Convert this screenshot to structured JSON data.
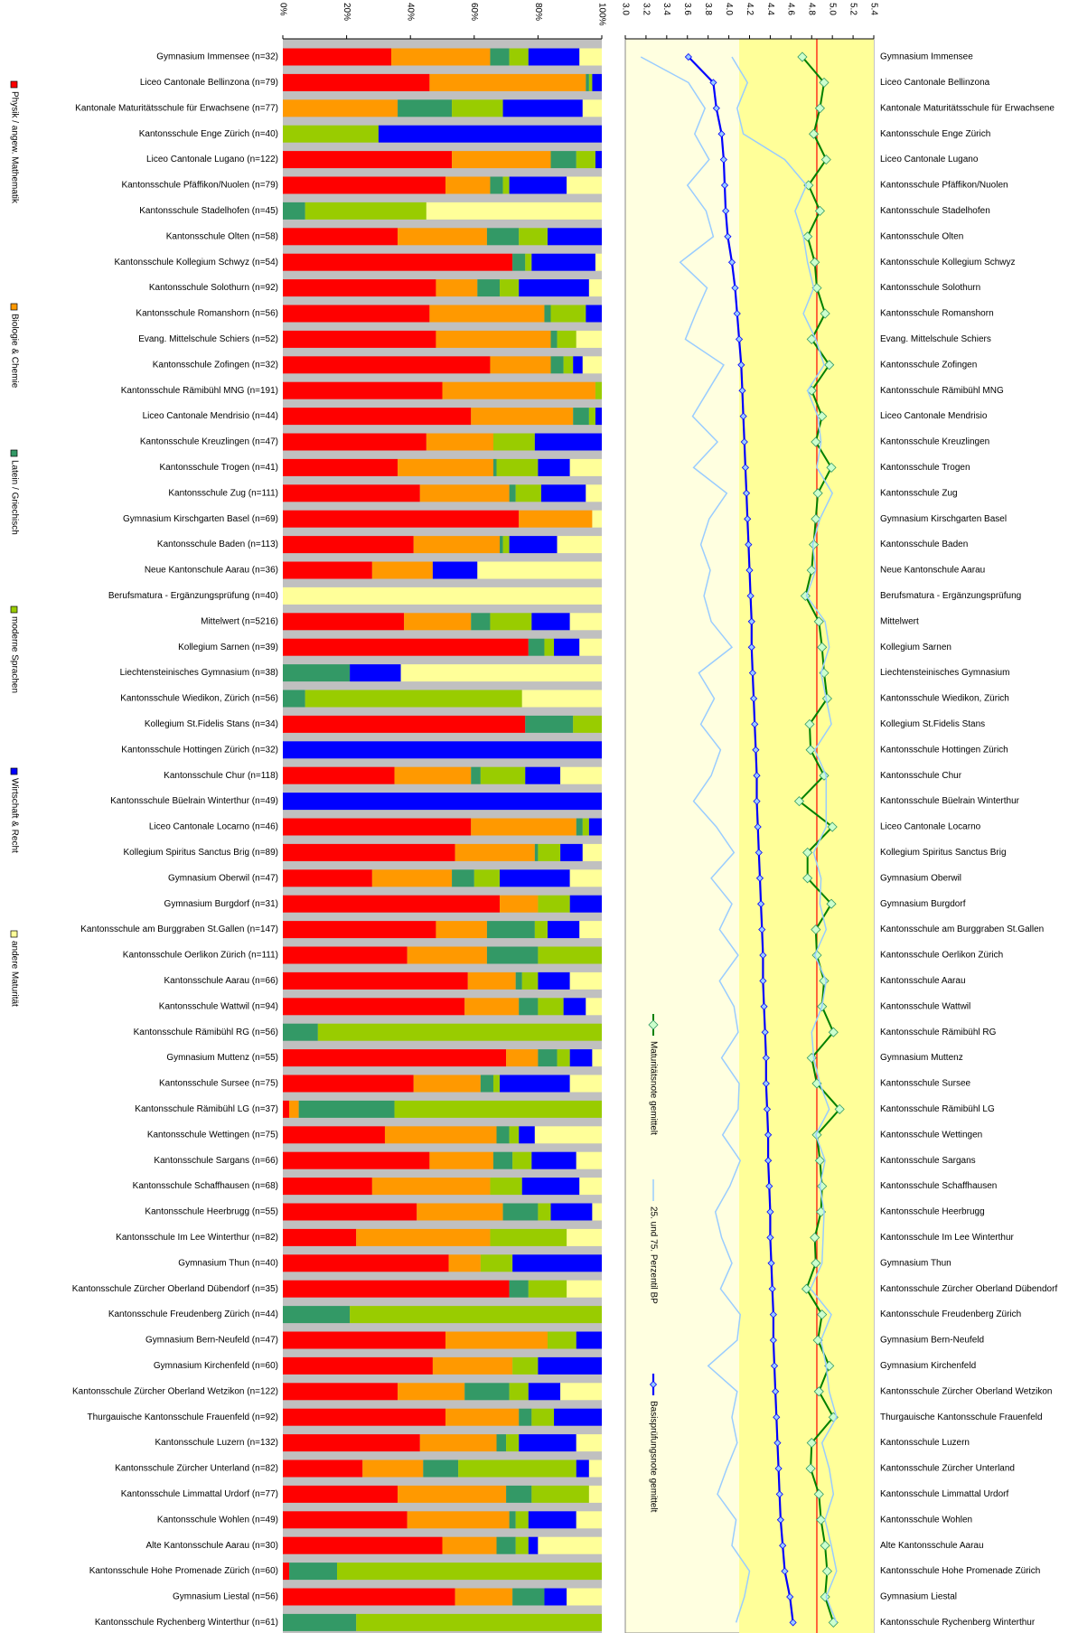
{
  "chart_data": [
    {
      "type": "bar",
      "orientation": "horizontal",
      "stacked": true,
      "legend": "left",
      "grid": false,
      "categories": [
        "Gymnasium Immensee (n=32)",
        "Liceo Cantonale Bellinzona (n=79)",
        "Kantonale Maturitätsschule für Erwachsene (n=77)",
        "Kantonsschule Enge Zürich (n=40)",
        "Liceo Cantonale Lugano (n=122)",
        "Kantonsschule Pfäffikon/Nuolen (n=79)",
        "Kantonsschule Stadelhofen (n=45)",
        "Kantonsschule Olten (n=58)",
        "Kantonsschule Kollegium Schwyz (n=54)",
        "Kantonsschule Solothurn (n=92)",
        "Kantonsschule Romanshorn (n=56)",
        "Evang. Mittelschule Schiers (n=52)",
        "Kantonsschule Zofingen (n=32)",
        "Kantonsschule Rämibühl MNG (n=191)",
        "Liceo Cantonale Mendrisio (n=44)",
        "Kantonsschule Kreuzlingen (n=47)",
        "Kantonsschule Trogen (n=41)",
        "Kantonsschule Zug (n=111)",
        "Gymnasium Kirschgarten Basel (n=69)",
        "Kantonsschule Baden (n=113)",
        "Neue Kantonschule Aarau (n=36)",
        "Berufsmatura - Ergänzungsprüfung (n=40)",
        "Mittelwert (n=5216)",
        "Kollegium Sarnen (n=39)",
        "Liechtensteinisches Gymnasium (n=38)",
        "Kantonsschule Wiedikon, Zürich (n=56)",
        "Kollegium St.Fidelis Stans (n=34)",
        "Kantonsschule Hottingen Zürich (n=32)",
        "Kantonsschule Chur (n=118)",
        "Kantonsschule Büelrain Winterthur (n=49)",
        "Liceo Cantonale Locarno (n=46)",
        "Kollegium Spiritus Sanctus Brig (n=89)",
        "Gymnasium Oberwil (n=47)",
        "Gymnasium Burgdorf (n=31)",
        "Kantonsschule am Burggraben St.Gallen (n=147)",
        "Kantonsschule Oerlikon Zürich (n=111)",
        "Kantonsschule Aarau (n=66)",
        "Kantonsschule Wattwil (n=94)",
        "Kantonsschule Rämibühl RG (n=56)",
        "Gymnasium Muttenz (n=55)",
        "Kantonsschule Sursee (n=75)",
        "Kantonsschule Rämibühl LG (n=37)",
        "Kantonsschule Wettingen (n=75)",
        "Kantonsschule Sargans (n=66)",
        "Kantonsschule Schaffhausen (n=68)",
        "Kantonsschule Heerbrugg (n=55)",
        "Kantonsschule Im Lee Winterthur (n=82)",
        "Gymnasium Thun (n=40)",
        "Kantonsschule Zürcher Oberland Dübendorf (n=35)",
        "Kantonsschule Freudenberg Zürich (n=44)",
        "Gymnasium Bern-Neufeld (n=47)",
        "Gymnasium Kirchenfeld (n=60)",
        "Kantonsschule Zürcher Oberland Wetzikon (n=122)",
        "Thurgauische Kantonsschule Frauenfeld (n=92)",
        "Kantonsschule Luzern (n=132)",
        "Kantonsschule Zürcher Unterland (n=82)",
        "Kantonsschule Limmattal Urdorf (n=77)",
        "Kantonsschule Wohlen (n=49)",
        "Alte Kantonsschule Aarau (n=30)",
        "Kantonsschule Hohe Promenade Zürich (n=60)",
        "Gymnasium Liestal (n=56)",
        "Kantonsschule Rychenberg Winterthur (n=61)"
      ],
      "series": [
        {
          "name": "Physik / angew. Mathematik",
          "color": "#ff0000",
          "values": [
            34,
            46,
            0,
            0,
            53,
            51,
            0,
            36,
            72,
            48,
            46,
            48,
            65,
            50,
            59,
            45,
            36,
            43,
            74,
            41,
            28,
            0,
            38,
            77,
            0,
            0,
            76,
            0,
            35,
            0,
            59,
            54,
            28,
            68,
            48,
            39,
            58,
            57,
            0,
            70,
            41,
            2,
            32,
            46,
            28,
            42,
            23,
            52,
            71,
            0,
            51,
            47,
            36,
            51,
            43,
            25,
            36,
            39,
            50,
            2,
            54,
            0
          ]
        },
        {
          "name": "Biologie & Chemie",
          "color": "#ff9900",
          "values": [
            31,
            49,
            36,
            0,
            31,
            14,
            0,
            28,
            0,
            13,
            36,
            36,
            19,
            48,
            32,
            21,
            30,
            28,
            23,
            27,
            19,
            0,
            21,
            0,
            0,
            0,
            0,
            0,
            24,
            0,
            33,
            25,
            25,
            12,
            16,
            25,
            15,
            17,
            0,
            10,
            21,
            3,
            35,
            20,
            37,
            27,
            42,
            10,
            0,
            0,
            32,
            25,
            21,
            23,
            24,
            19,
            34,
            32,
            17,
            0,
            18,
            0
          ]
        },
        {
          "name": "Latein / Griechisch",
          "color": "#339966",
          "values": [
            6,
            1,
            17,
            0,
            8,
            4,
            7,
            10,
            4,
            7,
            2,
            2,
            4,
            0,
            5,
            0,
            1,
            2,
            0,
            1,
            0,
            0,
            6,
            5,
            21,
            7,
            15,
            0,
            3,
            0,
            2,
            1,
            7,
            0,
            15,
            16,
            2,
            6,
            11,
            6,
            4,
            30,
            4,
            6,
            0,
            11,
            0,
            0,
            6,
            21,
            0,
            0,
            14,
            4,
            3,
            11,
            8,
            2,
            6,
            15,
            10,
            23
          ]
        },
        {
          "name": "moderne Sprachen",
          "color": "#99cc00",
          "values": [
            6,
            1,
            16,
            30,
            6,
            2,
            38,
            9,
            2,
            6,
            11,
            6,
            3,
            2,
            2,
            13,
            13,
            8,
            0,
            2,
            0,
            0,
            13,
            3,
            0,
            68,
            9,
            0,
            14,
            0,
            2,
            7,
            8,
            10,
            4,
            20,
            5,
            8,
            89,
            4,
            2,
            65,
            3,
            6,
            10,
            4,
            24,
            10,
            12,
            79,
            9,
            8,
            6,
            7,
            4,
            37,
            18,
            4,
            4,
            83,
            0,
            77
          ]
        },
        {
          "name": "Wirtschaft & Recht",
          "color": "#0000ff",
          "values": [
            16,
            3,
            25,
            70,
            2,
            18,
            0,
            17,
            20,
            22,
            5,
            0,
            3,
            0,
            2,
            21,
            10,
            14,
            0,
            15,
            14,
            0,
            12,
            8,
            16,
            0,
            0,
            100,
            11,
            100,
            4,
            7,
            22,
            10,
            10,
            0,
            10,
            7,
            0,
            7,
            22,
            0,
            5,
            14,
            18,
            13,
            0,
            28,
            0,
            0,
            8,
            20,
            10,
            15,
            18,
            4,
            0,
            15,
            3,
            0,
            7,
            0
          ]
        },
        {
          "name": "andere Maturität",
          "color": "#ffff99",
          "values": [
            7,
            0,
            6,
            0,
            0,
            11,
            55,
            0,
            2,
            4,
            0,
            8,
            6,
            0,
            0,
            0,
            10,
            5,
            3,
            14,
            39,
            100,
            10,
            7,
            63,
            25,
            0,
            0,
            13,
            0,
            0,
            6,
            10,
            0,
            7,
            0,
            10,
            5,
            0,
            3,
            10,
            0,
            21,
            8,
            7,
            3,
            11,
            0,
            11,
            0,
            0,
            0,
            13,
            0,
            8,
            4,
            4,
            8,
            20,
            0,
            11,
            0
          ]
        }
      ],
      "xlim": [
        0,
        100
      ],
      "xticks": [
        {
          "value": 0,
          "label": "0%"
        },
        {
          "value": 20,
          "label": "20%"
        },
        {
          "value": 40,
          "label": "40%"
        },
        {
          "value": 60,
          "label": "60%"
        },
        {
          "value": 80,
          "label": "80%"
        },
        {
          "value": 100,
          "label": "100%"
        }
      ]
    },
    {
      "type": "line",
      "orientation": "horizontal",
      "legend": "inside",
      "grid": false,
      "categories": [
        "Gymnasium Immensee",
        "Liceo Cantonale Bellinzona",
        "Kantonale Maturitätsschule für Erwachsene",
        "Kantonsschule Enge Zürich",
        "Liceo Cantonale Lugano",
        "Kantonsschule Pfäffikon/Nuolen",
        "Kantonsschule Stadelhofen",
        "Kantonsschule Olten",
        "Kantonsschule Kollegium Schwyz",
        "Kantonsschule Solothurn",
        "Kantonsschule Romanshorn",
        "Evang. Mittelschule Schiers",
        "Kantonsschule Zofingen",
        "Kantonsschule Rämibühl MNG",
        "Liceo Cantonale Mendrisio",
        "Kantonsschule Kreuzlingen",
        "Kantonsschule Trogen",
        "Kantonsschule Zug",
        "Gymnasium Kirschgarten Basel",
        "Kantonsschule Baden",
        "Neue Kantonschule Aarau",
        "Berufsmatura - Ergänzungsprüfung",
        "Mittelwert",
        "Kollegium Sarnen",
        "Liechtensteinisches Gymnasium",
        "Kantonsschule Wiedikon, Zürich",
        "Kollegium St.Fidelis Stans",
        "Kantonsschule Hottingen Zürich",
        "Kantonsschule Chur",
        "Kantonsschule Büelrain Winterthur",
        "Liceo Cantonale Locarno",
        "Kollegium Spiritus Sanctus Brig",
        "Gymnasium Oberwil",
        "Gymnasium Burgdorf",
        "Kantonsschule am Burggraben St.Gallen",
        "Kantonsschule Oerlikon Zürich",
        "Kantonsschule Aarau",
        "Kantonsschule Wattwil",
        "Kantonsschule Rämibühl RG",
        "Gymnasium Muttenz",
        "Kantonsschule Sursee",
        "Kantonsschule Rämibühl LG",
        "Kantonsschule Wettingen",
        "Kantonsschule Sargans",
        "Kantonsschule Schaffhausen",
        "Kantonsschule Heerbrugg",
        "Kantonsschule Im Lee Winterthur",
        "Gymnasium Thun",
        "Kantonsschule Zürcher Oberland Dübendorf",
        "Kantonsschule Freudenberg Zürich",
        "Gymnasium Bern-Neufeld",
        "Gymnasium Kirchenfeld",
        "Kantonsschule Zürcher Oberland Wetzikon",
        "Thurgauische Kantonsschule Frauenfeld",
        "Kantonsschule Luzern",
        "Kantonsschule Zürcher Unterland",
        "Kantonsschule Limmattal Urdorf",
        "Kantonsschule Wohlen",
        "Alte Kantonsschule Aarau",
        "Kantonsschule Hohe Promenade Zürich",
        "Gymnasium Liestal",
        "Kantonsschule Rychenberg Winterthur"
      ],
      "series": [
        {
          "name": "Maturitätsnote gemittelt",
          "color": "#008000",
          "values": [
            4.71,
            4.92,
            4.88,
            4.82,
            4.94,
            4.77,
            4.88,
            4.76,
            4.83,
            4.85,
            4.93,
            4.8,
            4.97,
            4.8,
            4.9,
            4.84,
            4.99,
            4.86,
            4.84,
            4.82,
            4.8,
            4.74,
            4.87,
            4.9,
            4.92,
            4.95,
            4.78,
            4.79,
            4.92,
            4.68,
            5.0,
            4.76,
            4.76,
            4.99,
            4.84,
            4.85,
            4.92,
            4.9,
            5.01,
            4.8,
            4.85,
            5.07,
            4.85,
            4.88,
            4.9,
            4.89,
            4.83,
            4.84,
            4.75,
            4.9,
            4.86,
            4.97,
            4.87,
            5.01,
            4.8,
            4.79,
            4.87,
            4.89,
            4.93,
            4.95,
            4.93,
            5.01
          ]
        },
        {
          "name": "25. und 75. Perzentil BP",
          "color": "#99ccff",
          "values": [
            3.15,
            3.61,
            3.77,
            3.67,
            3.81,
            3.6,
            3.78,
            3.85,
            3.53,
            3.79,
            3.68,
            3.58,
            3.95,
            3.8,
            3.65,
            3.89,
            3.66,
            3.98,
            3.81,
            3.73,
            3.82,
            3.76,
            3.83,
            4.03,
            3.71,
            3.86,
            3.73,
            3.92,
            3.83,
            3.66,
            3.88,
            4.05,
            3.83,
            4.03,
            3.91,
            4.09,
            3.91,
            4.05,
            4.09,
            3.93,
            4.1,
            4.09,
            3.94,
            4.11,
            4.01,
            3.87,
            3.93,
            4.03,
            3.92,
            4.11,
            4.08,
            3.8,
            4.08,
            4.03,
            4.08,
            3.98,
            3.89,
            4.07,
            4.03,
            4.2,
            4.15,
            4.07
          ],
          "upper_values": [
            4.03,
            4.18,
            4.08,
            4.14,
            4.54,
            4.75,
            4.64,
            4.72,
            4.76,
            4.82,
            4.72,
            4.84,
            4.92,
            4.76,
            4.86,
            4.89,
            4.85,
            5.0,
            4.88,
            4.81,
            4.84,
            4.75,
            4.93,
            4.97,
            4.89,
            4.94,
            4.99,
            4.83,
            4.94,
            4.94,
            4.94,
            4.82,
            4.89,
            4.88,
            4.94,
            4.83,
            4.94,
            4.9,
            4.8,
            4.82,
            4.88,
            4.97,
            4.84,
            4.93,
            4.88,
            4.92,
            4.91,
            4.9,
            4.79,
            4.99,
            4.89,
            4.94,
            4.97,
            5.04,
            4.9,
            4.97,
            5.01,
            4.93,
            4.99,
            5.04,
            4.94,
            5.04
          ]
        },
        {
          "name": "Basisprüfungsnote gemittelt",
          "color": "#0000ff",
          "values": [
            3.61,
            3.85,
            3.88,
            3.93,
            3.95,
            3.96,
            3.97,
            3.99,
            4.03,
            4.06,
            4.08,
            4.1,
            4.12,
            4.13,
            4.14,
            4.15,
            4.16,
            4.17,
            4.18,
            4.19,
            4.2,
            4.21,
            4.22,
            4.22,
            4.23,
            4.24,
            4.25,
            4.26,
            4.27,
            4.27,
            4.28,
            4.29,
            4.3,
            4.31,
            4.32,
            4.33,
            4.33,
            4.34,
            4.35,
            4.36,
            4.36,
            4.37,
            4.38,
            4.38,
            4.39,
            4.4,
            4.4,
            4.41,
            4.42,
            4.43,
            4.43,
            4.44,
            4.45,
            4.46,
            4.47,
            4.48,
            4.49,
            4.5,
            4.52,
            4.54,
            4.59,
            4.62
          ]
        }
      ],
      "xlim": [
        3.0,
        5.4
      ],
      "xticks": [
        {
          "value": 3,
          "label": "3.0"
        },
        3.2,
        3.4,
        3.6,
        3.8,
        {
          "value": 4,
          "label": "4.0"
        },
        4.2,
        4.4,
        4.6,
        4.8,
        {
          "value": 5,
          "label": "5.0"
        },
        5.2,
        5.4
      ],
      "band": [
        4.1,
        5.4
      ],
      "band_color": "#ffff99",
      "reference_line": 4.85,
      "reference_color": "#ff0000"
    }
  ]
}
